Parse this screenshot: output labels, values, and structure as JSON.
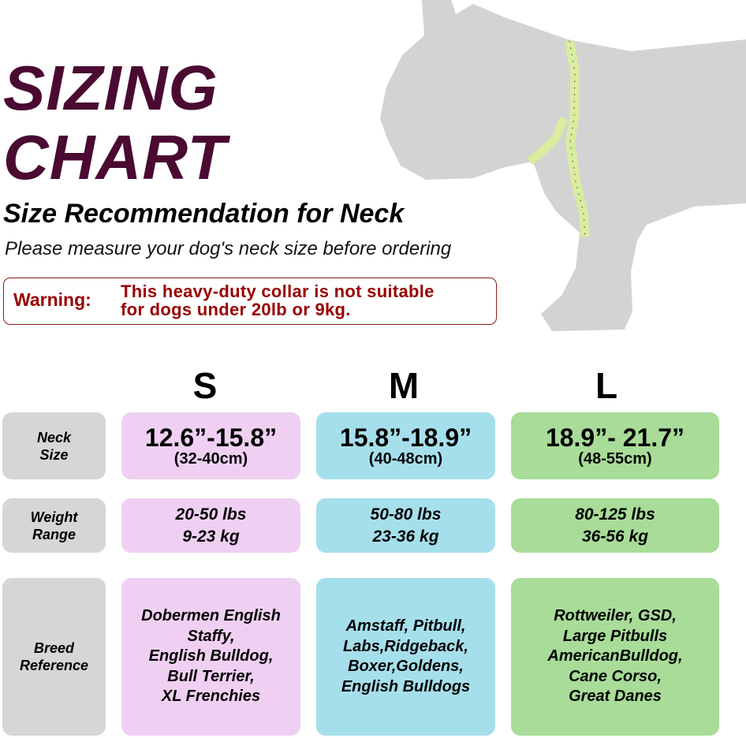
{
  "header": {
    "title_line1": "SIZING",
    "title_line2": "CHART",
    "subtitle": "Size Recommendation for Neck",
    "instruction": "Please measure your dog's neck size before ordering"
  },
  "warning": {
    "label": "Warning:",
    "line1": "This heavy-duty collar is not suitable",
    "line2": "for dogs under 20lb or 9kg."
  },
  "illustration": {
    "icon": "dog-silhouette-with-measuring-tape-icon",
    "silhouette_color": "#d3d3d3",
    "tape_color": "#d9eca0"
  },
  "colors": {
    "title": "#4a0a32",
    "warning": "#990000",
    "small": "#efd0f2",
    "medium": "#a6dfec",
    "large": "#a8dc98",
    "label": "#d6d6d6"
  },
  "row_labels": {
    "neck": [
      "Neck",
      "Size"
    ],
    "weight": [
      "Weight",
      "Range"
    ],
    "breed": [
      "Breed",
      "Reference"
    ]
  },
  "sizes": [
    {
      "letter": "S",
      "neck_in": "12.6”-15.8”",
      "neck_cm": "(32-40cm)",
      "weight_lbs": "20-50 lbs",
      "weight_kg": "9-23 kg",
      "breeds": [
        "Dobermen English",
        "Staffy,",
        "English Bulldog,",
        "Bull Terrier,",
        "XL Frenchies"
      ]
    },
    {
      "letter": "M",
      "neck_in": "15.8”-18.9”",
      "neck_cm": "(40-48cm)",
      "weight_lbs": "50-80 lbs",
      "weight_kg": "23-36 kg",
      "breeds": [
        "Amstaff, Pitbull,",
        "Labs,Ridgeback,",
        "Boxer,Goldens,",
        "English Bulldogs"
      ]
    },
    {
      "letter": "L",
      "neck_in": "18.9”- 21.7”",
      "neck_cm": "(48-55cm)",
      "weight_lbs": "80-125 lbs",
      "weight_kg": "36-56 kg",
      "breeds": [
        "Rottweiler, GSD,",
        "Large Pitbulls",
        "AmericanBulldog,",
        "Cane Corso,",
        "Great Danes"
      ]
    }
  ]
}
